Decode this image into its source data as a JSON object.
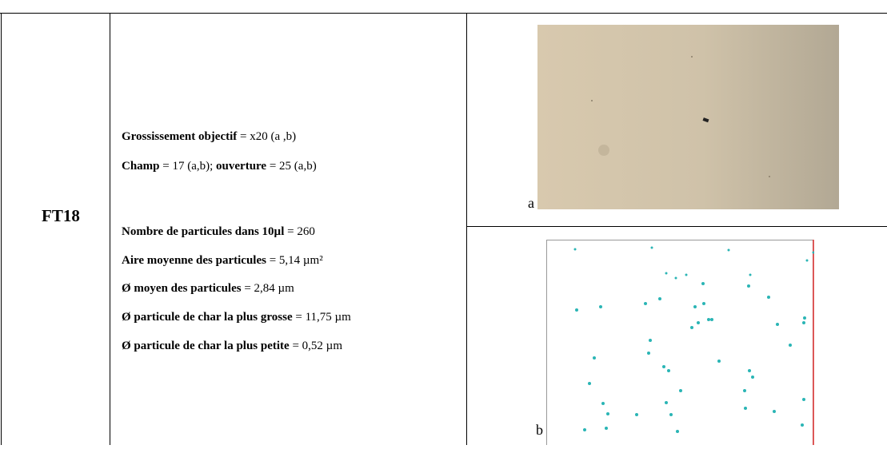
{
  "id": "FT18",
  "lines": [
    [
      {
        "text": "Grossissement objectif",
        "bold": true
      },
      {
        "text": " = x20 (a ,b)",
        "bold": false
      }
    ],
    [
      {
        "text": "Champ",
        "bold": true
      },
      {
        "text": " = 17 (a,b); ",
        "bold": false
      },
      {
        "text": "ouverture",
        "bold": true
      },
      {
        "text": " = 25 (a,b)",
        "bold": false
      }
    ],
    [
      {
        "text": "Nombre de particules dans 10µl",
        "bold": true
      },
      {
        "text": " = 260",
        "bold": false
      }
    ],
    [
      {
        "text": "Aire moyenne des particules",
        "bold": true
      },
      {
        "text": " = 5,14 µm²",
        "bold": false
      }
    ],
    [
      {
        "text": "Ø moyen des particules",
        "bold": true
      },
      {
        "text": " = 2,84 µm",
        "bold": false
      }
    ],
    [
      {
        "text": "Ø particule de char la plus grosse",
        "bold": true
      },
      {
        "text": " = 11,75 µm",
        "bold": false
      }
    ],
    [
      {
        "text": "Ø particule de char la plus petite",
        "bold": true
      },
      {
        "text": " = 0,52 µm",
        "bold": false
      }
    ]
  ],
  "images": [
    {
      "label": "a"
    },
    {
      "label": "b"
    }
  ]
}
